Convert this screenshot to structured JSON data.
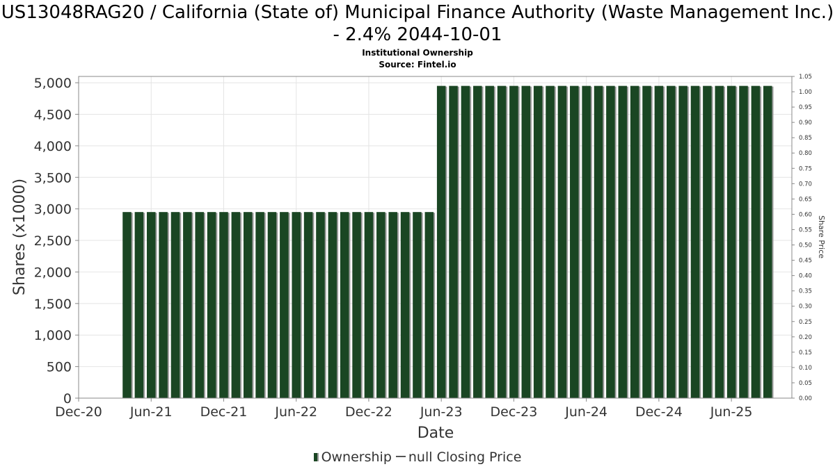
{
  "chart_data": {
    "type": "bar",
    "title": "US13048RAG20 / California (State of) Municipal Finance Authority (Waste Management Inc.) - 2.4% 2044-10-01",
    "subtitle_lines": [
      "Institutional Ownership",
      "Source: Fintel.io"
    ],
    "xlabel": "Date",
    "ylabel": "Shares (x1000)",
    "y2label": "Share Price",
    "xlim": [
      "2020-12-01",
      "2025-11-01"
    ],
    "ylim": [
      0,
      5100
    ],
    "y2lim": [
      0,
      1.05
    ],
    "x_ticks": [
      "Dec-20",
      "Jun-21",
      "Dec-21",
      "Jun-22",
      "Dec-22",
      "Jun-23",
      "Dec-23",
      "Jun-24",
      "Dec-24",
      "Jun-25"
    ],
    "y_ticks": [
      "0",
      "500",
      "1,000",
      "1,500",
      "2,000",
      "2,500",
      "3,000",
      "3,500",
      "4,000",
      "4,500",
      "5,000"
    ],
    "y2_ticks": [
      "0.00",
      "0.05",
      "0.10",
      "0.15",
      "0.20",
      "0.25",
      "0.30",
      "0.35",
      "0.40",
      "0.45",
      "0.50",
      "0.55",
      "0.60",
      "0.65",
      "0.70",
      "0.75",
      "0.80",
      "0.85",
      "0.90",
      "0.95",
      "1.00",
      "1.05"
    ],
    "grid": true,
    "legend_position": "bottom",
    "series": [
      {
        "name": "Ownership",
        "color": "#1a4623",
        "x": [
          "2021-04",
          "2021-05",
          "2021-06",
          "2021-07",
          "2021-08",
          "2021-09",
          "2021-10",
          "2021-11",
          "2021-12",
          "2022-01",
          "2022-02",
          "2022-03",
          "2022-04",
          "2022-05",
          "2022-06",
          "2022-07",
          "2022-08",
          "2022-09",
          "2022-10",
          "2022-11",
          "2022-12",
          "2023-01",
          "2023-02",
          "2023-03",
          "2023-04",
          "2023-05",
          "2023-06",
          "2023-07",
          "2023-08",
          "2023-09",
          "2023-10",
          "2023-11",
          "2023-12",
          "2024-01",
          "2024-02",
          "2024-03",
          "2024-04",
          "2024-05",
          "2024-06",
          "2024-07",
          "2024-08",
          "2024-09",
          "2024-10",
          "2024-11",
          "2024-12",
          "2025-01",
          "2025-02",
          "2025-03",
          "2025-04",
          "2025-05",
          "2025-06",
          "2025-07",
          "2025-08",
          "2025-09"
        ],
        "values": [
          2950,
          2950,
          2950,
          2950,
          2950,
          2950,
          2950,
          2950,
          2950,
          2950,
          2950,
          2950,
          2950,
          2950,
          2950,
          2950,
          2950,
          2950,
          2950,
          2950,
          2950,
          2950,
          2950,
          2950,
          2950,
          2950,
          4950,
          4950,
          4950,
          4950,
          4950,
          4950,
          4950,
          4950,
          4950,
          4950,
          4950,
          4950,
          4950,
          4950,
          4950,
          4950,
          4950,
          4950,
          4950,
          4950,
          4950,
          4950,
          4950,
          4950,
          4950,
          4950,
          4950,
          4950
        ]
      },
      {
        "name": "null Closing Price",
        "color": "#555555",
        "values": []
      }
    ]
  },
  "legend": {
    "ownership_label": "Ownership",
    "price_label": "null Closing Price"
  }
}
